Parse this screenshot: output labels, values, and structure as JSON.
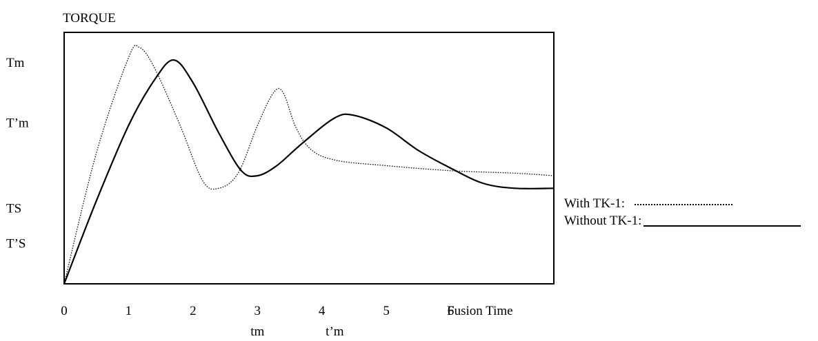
{
  "chart_data": {
    "type": "line",
    "title": "",
    "ylabel": "TORQUE",
    "xlabel": "Fusion Time",
    "xlim": [
      0,
      7.6
    ],
    "ylim": [
      0,
      1.0
    ],
    "x_ticks": [
      "0",
      "1",
      "2",
      "3",
      "4",
      "5",
      "6"
    ],
    "x_sub_ticks": [
      {
        "label": "tm",
        "x": 3.0
      },
      {
        "label": "t’m",
        "x": 4.2
      }
    ],
    "y_ticks": [
      {
        "label": "Tm",
        "y": 0.88
      },
      {
        "label": "T’m",
        "y": 0.64
      },
      {
        "label": "TS",
        "y": 0.3
      },
      {
        "label": "T’S",
        "y": 0.16
      }
    ],
    "grid": false,
    "legend_position": "right",
    "series": [
      {
        "name": "With TK-1:",
        "style": "dotted",
        "points": [
          [
            0,
            0
          ],
          [
            0.5,
            0.52
          ],
          [
            1.0,
            0.9
          ],
          [
            1.17,
            0.94
          ],
          [
            1.4,
            0.86
          ],
          [
            1.8,
            0.63
          ],
          [
            2.15,
            0.41
          ],
          [
            2.4,
            0.38
          ],
          [
            2.7,
            0.44
          ],
          [
            3.0,
            0.63
          ],
          [
            3.25,
            0.76
          ],
          [
            3.4,
            0.76
          ],
          [
            3.6,
            0.62
          ],
          [
            3.85,
            0.53
          ],
          [
            4.25,
            0.49
          ],
          [
            5.0,
            0.47
          ],
          [
            6.0,
            0.45
          ],
          [
            7.0,
            0.44
          ],
          [
            7.6,
            0.43
          ]
        ]
      },
      {
        "name": "Without TK-1:",
        "style": "solid",
        "points": [
          [
            0,
            0
          ],
          [
            0.5,
            0.33
          ],
          [
            1.0,
            0.63
          ],
          [
            1.4,
            0.81
          ],
          [
            1.7,
            0.89
          ],
          [
            2.0,
            0.8
          ],
          [
            2.4,
            0.6
          ],
          [
            2.75,
            0.45
          ],
          [
            3.0,
            0.43
          ],
          [
            3.3,
            0.47
          ],
          [
            3.7,
            0.56
          ],
          [
            4.2,
            0.66
          ],
          [
            4.5,
            0.67
          ],
          [
            5.0,
            0.62
          ],
          [
            5.5,
            0.53
          ],
          [
            6.0,
            0.46
          ],
          [
            6.5,
            0.4
          ],
          [
            7.0,
            0.38
          ],
          [
            7.6,
            0.38
          ]
        ]
      }
    ]
  }
}
